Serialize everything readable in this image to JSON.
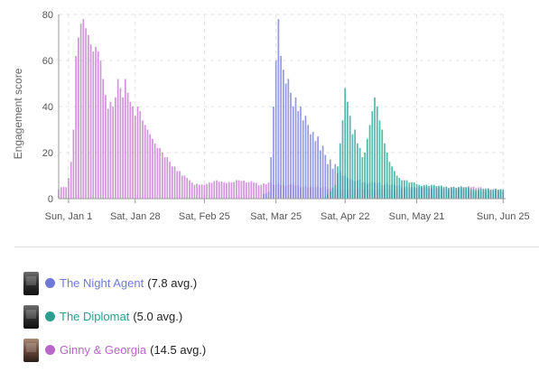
{
  "chart_data": {
    "type": "bar",
    "title": "",
    "xlabel": "",
    "ylabel": "Engagement score",
    "ylim": [
      0,
      80
    ],
    "y_ticks": [
      0,
      20,
      40,
      60,
      80
    ],
    "x_range": [
      "2023-12-28",
      "2024-06-26"
    ],
    "x_tick_dates": [
      "2024-01-01",
      "2024-01-28",
      "2024-02-25",
      "2024-03-25",
      "2024-04-22",
      "2024-05-21",
      "2024-06-25"
    ],
    "x_tick_labels": [
      "Sun, Jan 1",
      "Sat, Jan 28",
      "Sat, Feb 25",
      "Sat, Mar 25",
      "Sat, Apr 22",
      "Sun, May 21",
      "Sun, Jun 25"
    ],
    "grid": true,
    "series": [
      {
        "name": "The Night Agent",
        "color": "#7b86dc",
        "avg_label": "(7.8 avg.)",
        "points": [
          [
            "2024-03-20",
            2
          ],
          [
            "2024-03-22",
            3
          ],
          [
            "2024-03-23",
            18
          ],
          [
            "2024-03-24",
            40
          ],
          [
            "2024-03-25",
            60
          ],
          [
            "2024-03-26",
            78
          ],
          [
            "2024-03-27",
            62
          ],
          [
            "2024-03-28",
            56
          ],
          [
            "2024-03-29",
            50
          ],
          [
            "2024-03-30",
            52
          ],
          [
            "2024-03-31",
            46
          ],
          [
            "2024-04-01",
            40
          ],
          [
            "2024-04-02",
            44
          ],
          [
            "2024-04-03",
            38
          ],
          [
            "2024-04-04",
            40
          ],
          [
            "2024-04-05",
            34
          ],
          [
            "2024-04-06",
            36
          ],
          [
            "2024-04-07",
            32
          ],
          [
            "2024-04-08",
            28
          ],
          [
            "2024-04-09",
            29
          ],
          [
            "2024-04-10",
            25
          ],
          [
            "2024-04-11",
            27
          ],
          [
            "2024-04-12",
            21
          ],
          [
            "2024-04-13",
            23
          ],
          [
            "2024-04-14",
            19
          ],
          [
            "2024-04-15",
            15
          ],
          [
            "2024-04-16",
            17
          ],
          [
            "2024-04-17",
            13
          ],
          [
            "2024-04-18",
            15
          ],
          [
            "2024-04-19",
            11
          ],
          [
            "2024-04-20",
            12
          ],
          [
            "2024-04-21",
            10
          ],
          [
            "2024-04-23",
            9
          ],
          [
            "2024-04-25",
            8
          ],
          [
            "2024-04-27",
            8
          ],
          [
            "2024-04-30",
            7
          ],
          [
            "2024-05-04",
            7
          ],
          [
            "2024-05-08",
            6
          ],
          [
            "2024-05-12",
            6
          ],
          [
            "2024-05-16",
            5
          ],
          [
            "2024-05-20",
            5
          ],
          [
            "2024-05-24",
            5
          ],
          [
            "2024-05-28",
            4
          ],
          [
            "2024-06-01",
            4
          ],
          [
            "2024-06-05",
            4
          ],
          [
            "2024-06-09",
            4
          ],
          [
            "2024-06-13",
            3
          ],
          [
            "2024-06-17",
            3
          ],
          [
            "2024-06-21",
            3
          ],
          [
            "2024-06-25",
            3
          ]
        ]
      },
      {
        "name": "The Diplomat",
        "color": "#2fa89a",
        "avg_label": "(5.0 avg.)",
        "points": [
          [
            "2024-04-14",
            1
          ],
          [
            "2024-04-16",
            3
          ],
          [
            "2024-04-18",
            6
          ],
          [
            "2024-04-19",
            14
          ],
          [
            "2024-04-20",
            24
          ],
          [
            "2024-04-21",
            34
          ],
          [
            "2024-04-22",
            48
          ],
          [
            "2024-04-23",
            42
          ],
          [
            "2024-04-24",
            36
          ],
          [
            "2024-04-25",
            28
          ],
          [
            "2024-04-26",
            30
          ],
          [
            "2024-04-27",
            24
          ],
          [
            "2024-04-28",
            22
          ],
          [
            "2024-04-29",
            18
          ],
          [
            "2024-04-30",
            20
          ],
          [
            "2024-05-01",
            26
          ],
          [
            "2024-05-02",
            32
          ],
          [
            "2024-05-03",
            38
          ],
          [
            "2024-05-04",
            44
          ],
          [
            "2024-05-05",
            40
          ],
          [
            "2024-05-06",
            34
          ],
          [
            "2024-05-07",
            30
          ],
          [
            "2024-05-08",
            24
          ],
          [
            "2024-05-09",
            20
          ],
          [
            "2024-05-10",
            16
          ],
          [
            "2024-05-11",
            14
          ],
          [
            "2024-05-12",
            12
          ],
          [
            "2024-05-13",
            10
          ],
          [
            "2024-05-14",
            9
          ],
          [
            "2024-05-15",
            8
          ],
          [
            "2024-05-16",
            8
          ],
          [
            "2024-05-18",
            7
          ],
          [
            "2024-05-20",
            7
          ],
          [
            "2024-05-22",
            6
          ],
          [
            "2024-05-25",
            6
          ],
          [
            "2024-05-28",
            6
          ],
          [
            "2024-06-01",
            5
          ],
          [
            "2024-06-05",
            5
          ],
          [
            "2024-06-09",
            5
          ],
          [
            "2024-06-13",
            4
          ],
          [
            "2024-06-17",
            4
          ],
          [
            "2024-06-21",
            4
          ],
          [
            "2024-06-25",
            4
          ]
        ]
      },
      {
        "name": "Ginny & Georgia",
        "color": "#c67fd1",
        "avg_label": "(14.5 avg.)",
        "points": [
          [
            "2023-12-28",
            4
          ],
          [
            "2023-12-29",
            5
          ],
          [
            "2023-12-30",
            5
          ],
          [
            "2023-12-31",
            5
          ],
          [
            "2024-01-01",
            9
          ],
          [
            "2024-01-02",
            16
          ],
          [
            "2024-01-03",
            30
          ],
          [
            "2024-01-04",
            62
          ],
          [
            "2024-01-05",
            70
          ],
          [
            "2024-01-06",
            76
          ],
          [
            "2024-01-07",
            78
          ],
          [
            "2024-01-08",
            74
          ],
          [
            "2024-01-09",
            71
          ],
          [
            "2024-01-10",
            67
          ],
          [
            "2024-01-11",
            64
          ],
          [
            "2024-01-12",
            66
          ],
          [
            "2024-01-13",
            64
          ],
          [
            "2024-01-14",
            60
          ],
          [
            "2024-01-15",
            52
          ],
          [
            "2024-01-16",
            45
          ],
          [
            "2024-01-17",
            39
          ],
          [
            "2024-01-18",
            42
          ],
          [
            "2024-01-19",
            40
          ],
          [
            "2024-01-20",
            44
          ],
          [
            "2024-01-21",
            52
          ],
          [
            "2024-01-22",
            48
          ],
          [
            "2024-01-23",
            44
          ],
          [
            "2024-01-24",
            52
          ],
          [
            "2024-01-25",
            46
          ],
          [
            "2024-01-26",
            42
          ],
          [
            "2024-01-27",
            40
          ],
          [
            "2024-01-28",
            36
          ],
          [
            "2024-01-29",
            40
          ],
          [
            "2024-01-30",
            38
          ],
          [
            "2024-01-31",
            34
          ],
          [
            "2024-02-01",
            32
          ],
          [
            "2024-02-02",
            30
          ],
          [
            "2024-02-03",
            28
          ],
          [
            "2024-02-04",
            26
          ],
          [
            "2024-02-05",
            24
          ],
          [
            "2024-02-06",
            22
          ],
          [
            "2024-02-07",
            22
          ],
          [
            "2024-02-08",
            20
          ],
          [
            "2024-02-09",
            18
          ],
          [
            "2024-02-10",
            18
          ],
          [
            "2024-02-11",
            16
          ],
          [
            "2024-02-12",
            14
          ],
          [
            "2024-02-13",
            14
          ],
          [
            "2024-02-14",
            12
          ],
          [
            "2024-02-15",
            12
          ],
          [
            "2024-02-16",
            10
          ],
          [
            "2024-02-17",
            10
          ],
          [
            "2024-02-18",
            9
          ],
          [
            "2024-02-19",
            8
          ],
          [
            "2024-02-20",
            7
          ],
          [
            "2024-02-21",
            6
          ],
          [
            "2024-02-23",
            6
          ],
          [
            "2024-02-25",
            6
          ],
          [
            "2024-02-27",
            7
          ],
          [
            "2024-03-01",
            8
          ],
          [
            "2024-03-04",
            7
          ],
          [
            "2024-03-07",
            7
          ],
          [
            "2024-03-10",
            8
          ],
          [
            "2024-03-13",
            7
          ],
          [
            "2024-03-16",
            7
          ],
          [
            "2024-03-19",
            6
          ],
          [
            "2024-03-22",
            7
          ],
          [
            "2024-03-25",
            6
          ],
          [
            "2024-03-28",
            6
          ],
          [
            "2024-04-01",
            6
          ],
          [
            "2024-04-05",
            5
          ],
          [
            "2024-04-09",
            5
          ],
          [
            "2024-04-13",
            5
          ],
          [
            "2024-04-17",
            4
          ],
          [
            "2024-04-21",
            4
          ],
          [
            "2024-04-25",
            4
          ],
          [
            "2024-04-29",
            4
          ],
          [
            "2024-05-03",
            4
          ],
          [
            "2024-05-07",
            4
          ],
          [
            "2024-05-11",
            4
          ],
          [
            "2024-05-15",
            4
          ],
          [
            "2024-05-19",
            4
          ],
          [
            "2024-05-23",
            5
          ],
          [
            "2024-05-27",
            5
          ],
          [
            "2024-05-31",
            5
          ],
          [
            "2024-06-04",
            5
          ],
          [
            "2024-06-08",
            5
          ],
          [
            "2024-06-12",
            5
          ],
          [
            "2024-06-16",
            5
          ],
          [
            "2024-06-20",
            4
          ],
          [
            "2024-06-24",
            4
          ]
        ]
      }
    ]
  },
  "legend": {
    "items": [
      {
        "name": "The Night Agent",
        "avg": "(7.8 avg.)",
        "color": "#6f79d8",
        "poster_icon": "poster-thumbnail-icon"
      },
      {
        "name": "The Diplomat",
        "avg": "(5.0 avg.)",
        "color": "#2a9d8f",
        "poster_icon": "poster-thumbnail-icon"
      },
      {
        "name": "Ginny & Georgia",
        "avg": "(14.5 avg.)",
        "color": "#b866c8",
        "poster_icon": "poster-thumbnail-icon"
      }
    ]
  }
}
